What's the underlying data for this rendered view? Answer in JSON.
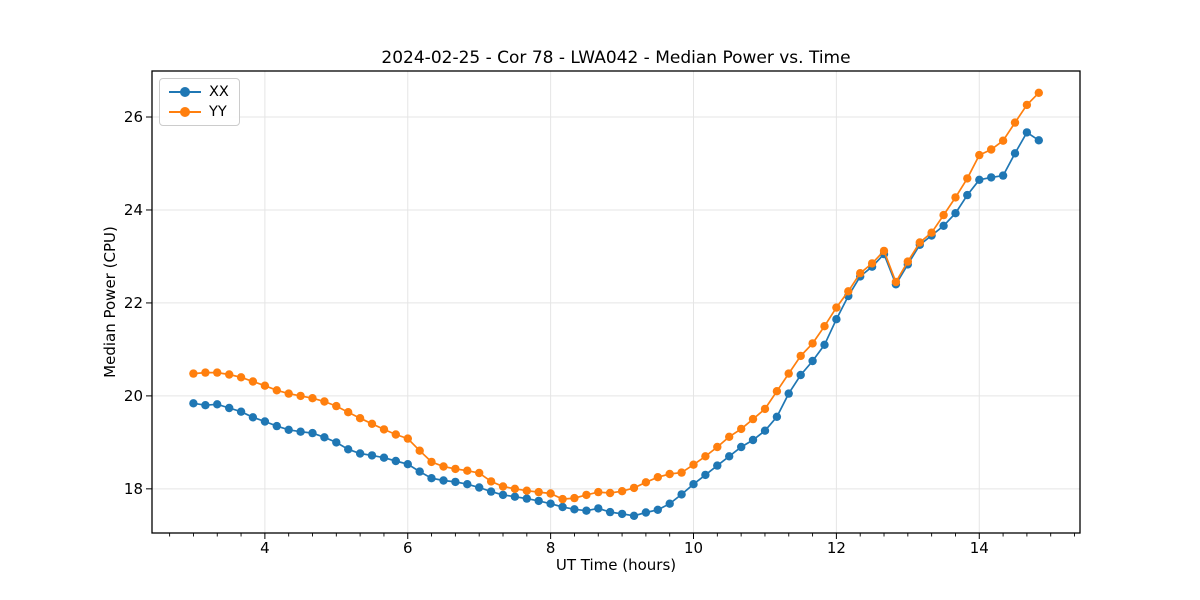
{
  "figure": {
    "background": "#ffffff",
    "frame_color": "#000000",
    "grid_color": "#e5e5e5"
  },
  "chart_data": {
    "type": "line",
    "title": "2024-02-25 - Cor 78 - LWA042 - Median Power vs. Time",
    "xlabel": "UT Time (hours)",
    "ylabel": "Median Power (CPU)",
    "xlim": [
      2.42,
      15.41
    ],
    "ylim": [
      17.05,
      26.99
    ],
    "x_major_ticks": [
      4,
      6,
      8,
      10,
      12,
      14
    ],
    "x_minor_step": 0.333,
    "y_major_ticks": [
      18,
      20,
      22,
      24,
      26
    ],
    "grid": true,
    "legend_position": "upper-left",
    "marker": "circle",
    "x": [
      3.0,
      3.167,
      3.333,
      3.5,
      3.667,
      3.833,
      4.0,
      4.167,
      4.333,
      4.5,
      4.667,
      4.833,
      5.0,
      5.167,
      5.333,
      5.5,
      5.667,
      5.833,
      6.0,
      6.167,
      6.333,
      6.5,
      6.667,
      6.833,
      7.0,
      7.167,
      7.333,
      7.5,
      7.667,
      7.833,
      8.0,
      8.167,
      8.333,
      8.5,
      8.667,
      8.833,
      9.0,
      9.167,
      9.333,
      9.5,
      9.667,
      9.833,
      10.0,
      10.167,
      10.333,
      10.5,
      10.667,
      10.833,
      11.0,
      11.167,
      11.333,
      11.5,
      11.667,
      11.833,
      12.0,
      12.167,
      12.333,
      12.5,
      12.667,
      12.833,
      13.0,
      13.167,
      13.333,
      13.5,
      13.667,
      13.833,
      14.0,
      14.167,
      14.333,
      14.5,
      14.667,
      14.833
    ],
    "series": [
      {
        "name": "XX",
        "color": "#1f77b4",
        "values": [
          19.84,
          19.8,
          19.82,
          19.74,
          19.66,
          19.54,
          19.45,
          19.35,
          19.27,
          19.23,
          19.2,
          19.11,
          19.0,
          18.85,
          18.76,
          18.72,
          18.67,
          18.6,
          18.53,
          18.37,
          18.23,
          18.18,
          18.15,
          18.1,
          18.03,
          17.94,
          17.87,
          17.83,
          17.79,
          17.74,
          17.68,
          17.61,
          17.56,
          17.53,
          17.58,
          17.5,
          17.46,
          17.42,
          17.49,
          17.55,
          17.68,
          17.88,
          18.1,
          18.3,
          18.5,
          18.7,
          18.9,
          19.05,
          19.25,
          19.55,
          20.05,
          20.45,
          20.75,
          21.1,
          21.65,
          22.15,
          22.57,
          22.78,
          23.05,
          22.4,
          22.83,
          23.25,
          23.45,
          23.66,
          23.93,
          24.32,
          24.65,
          24.7,
          24.74,
          25.22,
          25.67,
          25.5
        ]
      },
      {
        "name": "YY",
        "color": "#ff7f0e",
        "values": [
          20.48,
          20.5,
          20.5,
          20.46,
          20.4,
          20.31,
          20.22,
          20.12,
          20.05,
          20.0,
          19.95,
          19.88,
          19.78,
          19.65,
          19.52,
          19.4,
          19.28,
          19.17,
          19.08,
          18.82,
          18.58,
          18.48,
          18.43,
          18.39,
          18.34,
          18.16,
          18.05,
          18.0,
          17.96,
          17.93,
          17.9,
          17.78,
          17.8,
          17.87,
          17.93,
          17.91,
          17.95,
          18.02,
          18.14,
          18.25,
          18.32,
          18.35,
          18.52,
          18.7,
          18.9,
          19.12,
          19.29,
          19.5,
          19.72,
          20.1,
          20.48,
          20.86,
          21.13,
          21.5,
          21.9,
          22.25,
          22.64,
          22.85,
          23.12,
          22.45,
          22.89,
          23.3,
          23.51,
          23.89,
          24.27,
          24.68,
          25.18,
          25.3,
          25.49,
          25.88,
          26.26,
          26.52
        ]
      }
    ]
  }
}
